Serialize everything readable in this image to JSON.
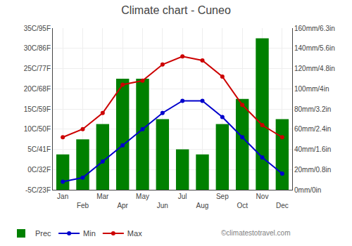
{
  "chart_data": {
    "type": "bar",
    "title": "Climate chart - Cuneo",
    "categories": [
      "Jan",
      "Feb",
      "Mar",
      "Apr",
      "May",
      "Jun",
      "Jul",
      "Aug",
      "Sep",
      "Oct",
      "Nov",
      "Dec"
    ],
    "series": [
      {
        "name": "Prec",
        "type": "bar",
        "color": "#008000",
        "axis": "y2",
        "values": [
          35,
          50,
          65,
          110,
          110,
          70,
          40,
          35,
          65,
          90,
          150,
          70
        ]
      },
      {
        "name": "Min",
        "type": "line",
        "color": "#0000cc",
        "marker": "circle",
        "values": [
          -3,
          -2,
          2,
          6,
          10,
          14,
          17,
          17,
          13,
          8,
          3,
          -1
        ]
      },
      {
        "name": "Max",
        "type": "line",
        "color": "#cc0000",
        "marker": "circle",
        "values": [
          8,
          10,
          14,
          21,
          22,
          26,
          28,
          27,
          23,
          16,
          11,
          8
        ]
      }
    ],
    "ylim": [
      -5,
      35
    ],
    "yticks": [
      {
        "value": -5,
        "label": "-5C/23F"
      },
      {
        "value": 0,
        "label": "0C/32F"
      },
      {
        "value": 5,
        "label": "5C/41F"
      },
      {
        "value": 10,
        "label": "10C/50F"
      },
      {
        "value": 15,
        "label": "15C/59F"
      },
      {
        "value": 20,
        "label": "20C/68F"
      },
      {
        "value": 25,
        "label": "25C/77F"
      },
      {
        "value": 30,
        "label": "30C/86F"
      },
      {
        "value": 35,
        "label": "35C/95F"
      }
    ],
    "y2lim": [
      0,
      160
    ],
    "y2ticks": [
      {
        "value": 0,
        "label": "0mm/0in"
      },
      {
        "value": 20,
        "label": "20mm/0.8in"
      },
      {
        "value": 40,
        "label": "40mm/1.6in"
      },
      {
        "value": 60,
        "label": "60mm/2.4in"
      },
      {
        "value": 80,
        "label": "80mm/3.2in"
      },
      {
        "value": 100,
        "label": "100mm/4in"
      },
      {
        "value": 120,
        "label": "120mm/4.8in"
      },
      {
        "value": 140,
        "label": "140mm/5.6in"
      },
      {
        "value": 160,
        "label": "160mm/6.3in"
      }
    ],
    "grid": true,
    "legend": "bottom",
    "annotations": [
      "©climatestotravel.com"
    ]
  }
}
